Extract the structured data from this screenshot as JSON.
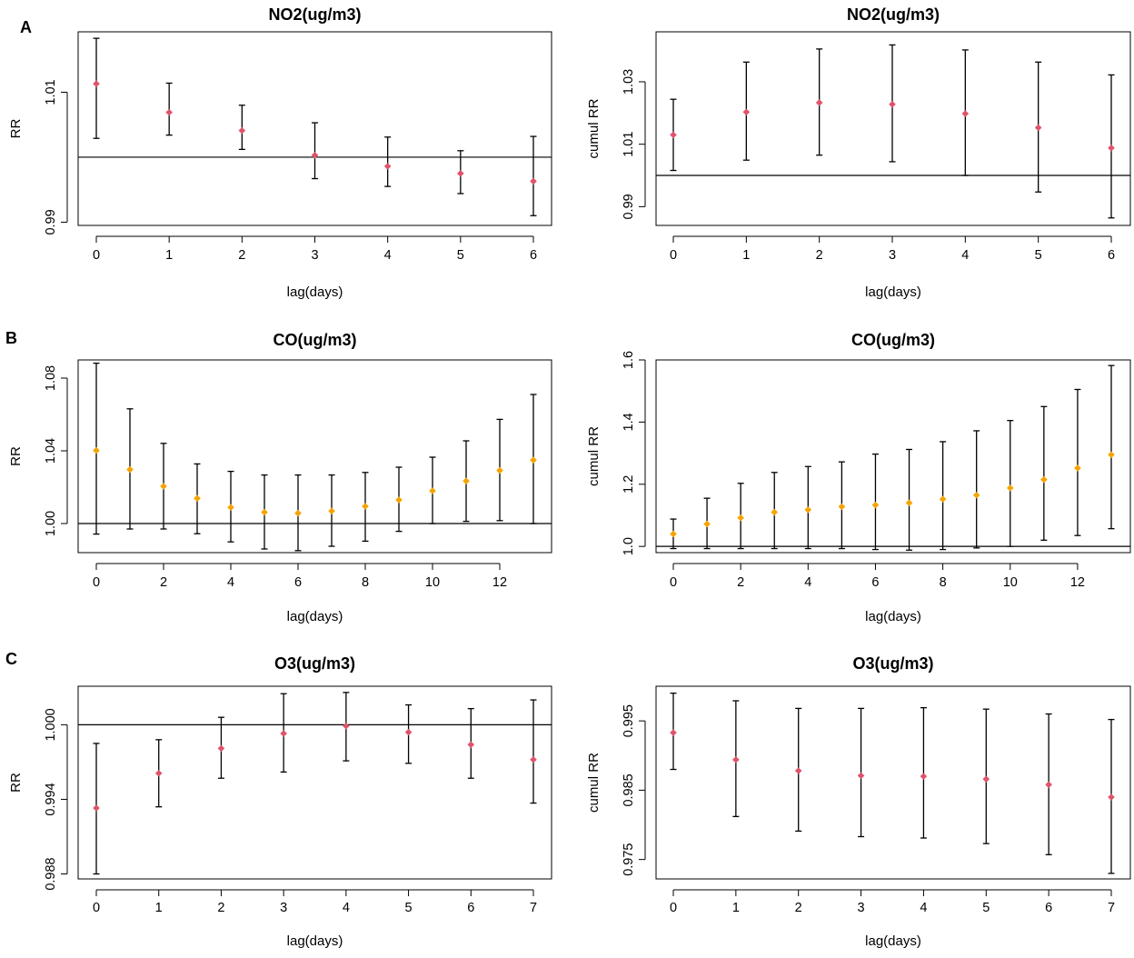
{
  "figure": {
    "rows": [
      {
        "letter": "A"
      },
      {
        "letter": "B"
      },
      {
        "letter": "C"
      }
    ]
  },
  "colors": {
    "no2_point": "#DF536B",
    "co_point": "#F5A300",
    "o3_point": "#DF536B",
    "line": "#000000"
  },
  "chart_data": [
    {
      "id": "a-left",
      "type": "scatter",
      "title": "NO2(ug/m3)",
      "xlabel": "lag(days)",
      "ylabel": "RR",
      "x": [
        0,
        1,
        2,
        3,
        4,
        5,
        6
      ],
      "y": [
        1.0113,
        1.0069,
        1.0041,
        1.0003,
        0.9986,
        0.9975,
        0.9963
      ],
      "lower": [
        1.0029,
        1.0034,
        1.0012,
        0.9967,
        0.9955,
        0.9944,
        0.991
      ],
      "upper": [
        1.0183,
        1.0114,
        1.008,
        1.0053,
        1.0031,
        1.001,
        1.0032
      ],
      "ylim": [
        0.9895,
        1.0193
      ],
      "yticks": [
        0.99,
        1.01
      ],
      "ytick_labels": [
        "0.99",
        "1.01"
      ],
      "xticks": [
        0,
        1,
        2,
        3,
        4,
        5,
        6
      ],
      "xtick_labels": [
        "0",
        "1",
        "2",
        "3",
        "4",
        "5",
        "6"
      ],
      "xlim": [
        0,
        6
      ],
      "ref_line": 1.0,
      "point_color": "no2_point"
    },
    {
      "id": "a-right",
      "type": "scatter",
      "title": "NO2(ug/m3)",
      "xlabel": "lag(days)",
      "ylabel": "cumul RR",
      "x": [
        0,
        1,
        2,
        3,
        4,
        5,
        6
      ],
      "y": [
        1.013,
        1.0203,
        1.0233,
        1.0228,
        1.0198,
        1.0153,
        1.0088
      ],
      "lower": [
        1.0016,
        1.0049,
        1.0065,
        1.0044,
        1.0,
        0.9947,
        0.9864
      ],
      "upper": [
        1.0244,
        1.0363,
        1.0405,
        1.0418,
        1.0402,
        1.0363,
        1.0322
      ],
      "ylim": [
        0.984,
        1.046
      ],
      "yticks": [
        0.99,
        1.01,
        1.03
      ],
      "ytick_labels": [
        "0.99",
        "1.01",
        "1.03"
      ],
      "xticks": [
        0,
        1,
        2,
        3,
        4,
        5,
        6
      ],
      "xtick_labels": [
        "0",
        "1",
        "2",
        "3",
        "4",
        "5",
        "6"
      ],
      "xlim": [
        0,
        6
      ],
      "ref_line": 1.0,
      "point_color": "no2_point"
    },
    {
      "id": "b-left",
      "type": "scatter",
      "title": "CO(ug/m3)",
      "xlabel": "lag(days)",
      "ylabel": "RR",
      "x": [
        0,
        1,
        2,
        3,
        4,
        5,
        6,
        7,
        8,
        9,
        10,
        11,
        12,
        13
      ],
      "y": [
        1.0402,
        1.0297,
        1.0205,
        1.0139,
        1.0089,
        1.0062,
        1.0057,
        1.0069,
        1.0095,
        1.013,
        1.018,
        1.0234,
        1.0292,
        1.0349
      ],
      "lower": [
        0.9942,
        0.997,
        0.997,
        0.9944,
        0.9899,
        0.986,
        0.9851,
        0.9875,
        0.9903,
        0.9957,
        1.0,
        1.0012,
        1.0016,
        1.0
      ],
      "upper": [
        1.0882,
        1.0631,
        1.0441,
        1.0328,
        1.0287,
        1.0267,
        1.0267,
        1.0267,
        1.0281,
        1.031,
        1.0365,
        1.0455,
        1.0573,
        1.071
      ],
      "ylim": [
        0.984,
        1.09
      ],
      "yticks": [
        1.0,
        1.04,
        1.08
      ],
      "ytick_labels": [
        "1.00",
        "1.04",
        "1.08"
      ],
      "xticks": [
        0,
        2,
        4,
        6,
        8,
        10,
        12
      ],
      "xtick_labels": [
        "0",
        "2",
        "4",
        "6",
        "8",
        "10",
        "12"
      ],
      "xlim": [
        0,
        13
      ],
      "ref_line": 1.0,
      "point_color": "co_point"
    },
    {
      "id": "b-right",
      "type": "scatter",
      "title": "CO(ug/m3)",
      "xlabel": "lag(days)",
      "ylabel": "cumul RR",
      "x": [
        0,
        1,
        2,
        3,
        4,
        5,
        6,
        7,
        8,
        9,
        10,
        11,
        12,
        13
      ],
      "y": [
        1.04,
        1.072,
        1.092,
        1.11,
        1.118,
        1.128,
        1.133,
        1.14,
        1.152,
        1.165,
        1.188,
        1.215,
        1.252,
        1.295
      ],
      "lower": [
        0.993,
        0.993,
        0.993,
        0.993,
        0.993,
        0.993,
        0.99,
        0.988,
        0.99,
        0.995,
        1.0,
        1.02,
        1.035,
        1.057
      ],
      "upper": [
        1.088,
        1.155,
        1.203,
        1.238,
        1.257,
        1.272,
        1.297,
        1.312,
        1.337,
        1.372,
        1.405,
        1.45,
        1.505,
        1.582
      ],
      "ylim": [
        0.98,
        1.6
      ],
      "yticks": [
        1.0,
        1.2,
        1.4,
        1.6
      ],
      "ytick_labels": [
        "1.0",
        "1.2",
        "1.4",
        "1.6"
      ],
      "xticks": [
        0,
        2,
        4,
        6,
        8,
        10,
        12
      ],
      "xtick_labels": [
        "0",
        "2",
        "4",
        "6",
        "8",
        "10",
        "12"
      ],
      "xlim": [
        0,
        13
      ],
      "ref_line": 1.0,
      "point_color": "co_point"
    },
    {
      "id": "c-left",
      "type": "scatter",
      "title": "O3(ug/m3)",
      "xlabel": "lag(days)",
      "ylabel": "RR",
      "x": [
        0,
        1,
        2,
        3,
        4,
        5,
        6,
        7
      ],
      "y": [
        0.9933,
        0.9961,
        0.9981,
        0.9993,
        0.9999,
        0.9994,
        0.9984,
        0.9972
      ],
      "lower": [
        0.988,
        0.9934,
        0.9957,
        0.9962,
        0.9971,
        0.9969,
        0.9957,
        0.9937
      ],
      "upper": [
        0.9985,
        0.9988,
        1.0006,
        1.0025,
        1.0026,
        1.0016,
        1.0013,
        1.002
      ],
      "ylim": [
        0.9876,
        1.0031
      ],
      "yticks": [
        0.988,
        0.994,
        1.0
      ],
      "ytick_labels": [
        "0.988",
        "0.994",
        "1.000"
      ],
      "xticks": [
        0,
        1,
        2,
        3,
        4,
        5,
        6,
        7
      ],
      "xtick_labels": [
        "0",
        "1",
        "2",
        "3",
        "4",
        "5",
        "6",
        "7"
      ],
      "xlim": [
        0,
        7
      ],
      "ref_line": 1.0,
      "point_color": "o3_point"
    },
    {
      "id": "c-right",
      "type": "scatter",
      "title": "O3(ug/m3)",
      "xlabel": "lag(days)",
      "ylabel": "cumul RR",
      "x": [
        0,
        1,
        2,
        3,
        4,
        5,
        6,
        7
      ],
      "y": [
        0.9933,
        0.9894,
        0.9878,
        0.9871,
        0.987,
        0.9866,
        0.9858,
        0.984
      ],
      "lower": [
        0.988,
        0.9812,
        0.9791,
        0.9783,
        0.9781,
        0.9773,
        0.9757,
        0.973
      ],
      "upper": [
        0.999,
        0.9979,
        0.9968,
        0.9968,
        0.9969,
        0.9967,
        0.996,
        0.9952
      ],
      "ylim": [
        0.9722,
        1.0
      ],
      "yticks": [
        0.975,
        0.985,
        0.995
      ],
      "ytick_labels": [
        "0.975",
        "0.985",
        "0.995"
      ],
      "xticks": [
        0,
        1,
        2,
        3,
        4,
        5,
        6,
        7
      ],
      "xtick_labels": [
        "0",
        "1",
        "2",
        "3",
        "4",
        "5",
        "6",
        "7"
      ],
      "xlim": [
        0,
        7
      ],
      "ref_line": null,
      "point_color": "o3_point"
    }
  ]
}
